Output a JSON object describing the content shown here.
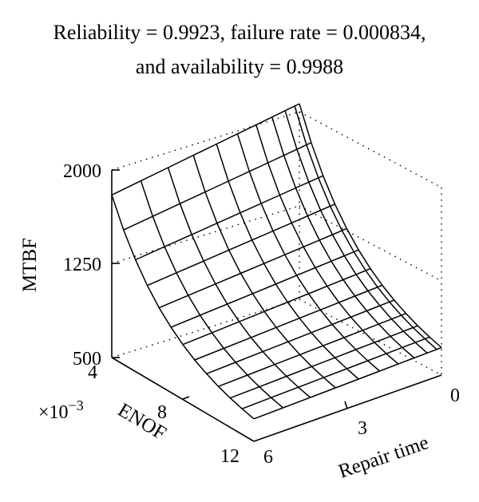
{
  "chart_data": {
    "type": "surface",
    "title_line1": "Reliability = 0.9923, failure rate  = 0.000834,",
    "title_line2": "and availability = 0.9988",
    "zlabel": "MTBF",
    "xlabel": "Repair time",
    "ylabel": "ENOF",
    "y_multiplier_base": "×10",
    "y_multiplier_exp": "−3",
    "z_ticks": [
      "2000",
      "1250",
      "500"
    ],
    "x_ticks": [
      "0",
      "3",
      "6"
    ],
    "y_ticks": [
      "4",
      "8",
      "12"
    ],
    "zlim": [
      500,
      2000
    ],
    "xlim": [
      0,
      6
    ],
    "ylim": [
      4,
      12
    ],
    "grid": false,
    "surface_corner_values": {
      "repair_time_6_enof_4": 1800,
      "repair_time_0_enof_4": 2000,
      "repair_time_6_enof_12": 680,
      "repair_time_0_enof_12": 720
    }
  }
}
